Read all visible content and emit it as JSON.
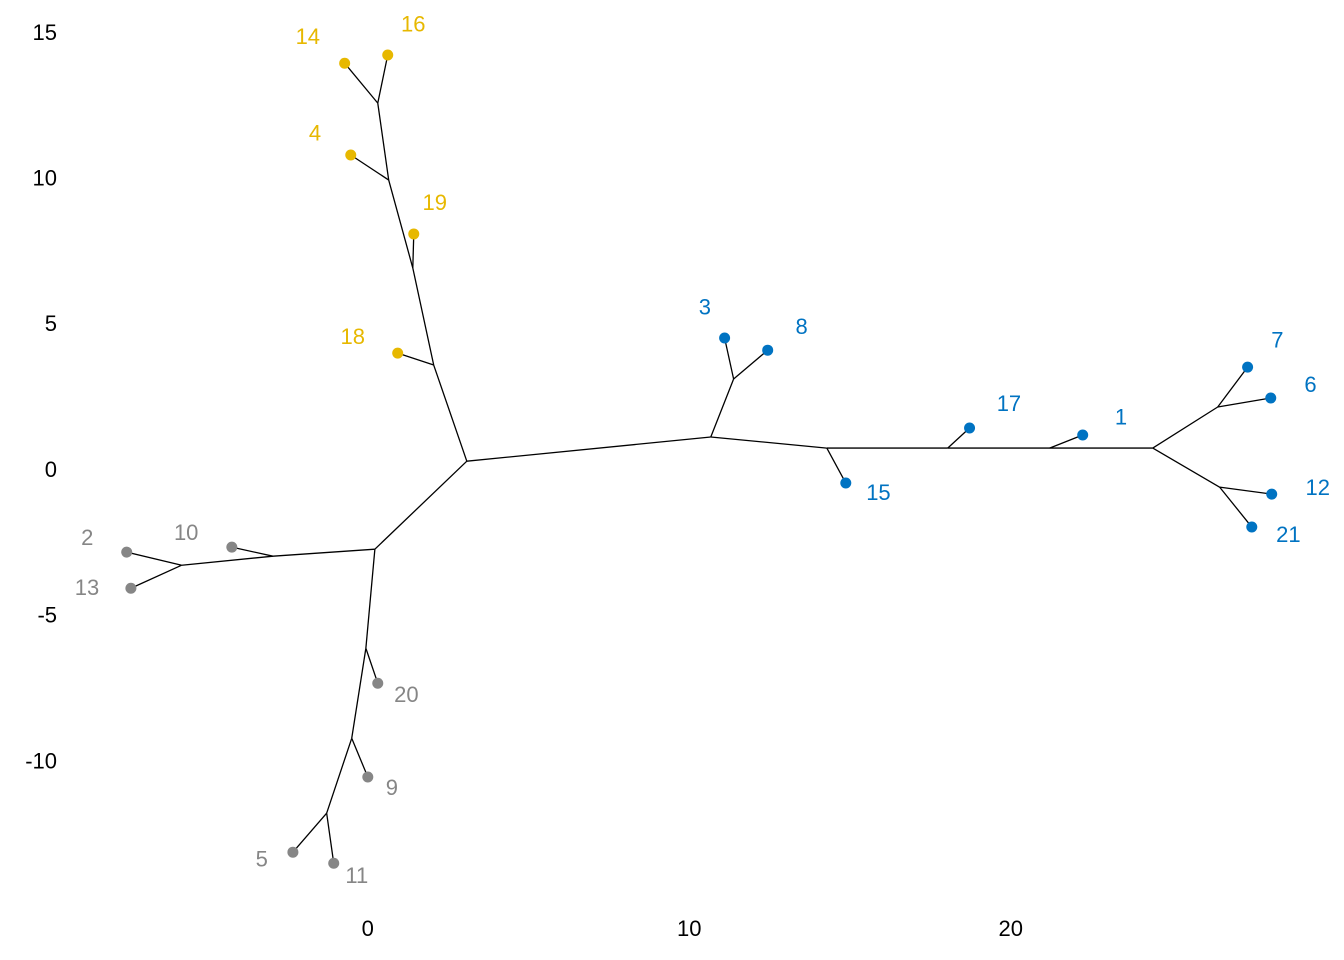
{
  "chart_data": {
    "type": "tree",
    "xlim": [
      -8.3,
      29
    ],
    "ylim": [
      -14,
      15.5
    ],
    "xticks": [
      0,
      10,
      20
    ],
    "yticks": [
      -10,
      -5,
      0,
      5,
      10,
      15
    ],
    "tree": {
      "x": 3.08,
      "y": 0.34,
      "children": [
        {
          "x": 0.22,
          "y": -2.68,
          "children": [
            {
              "x": -2.95,
              "y": -2.92,
              "children": [
                {
                  "x": -4.23,
                  "y": -2.61,
                  "label": "10",
                  "color": "#868686"
                },
                {
                  "x": -5.79,
                  "y": -3.23,
                  "children": [
                    {
                      "x": -7.5,
                      "y": -2.78,
                      "label": "2",
                      "color": "#868686"
                    },
                    {
                      "x": -7.37,
                      "y": -4.02,
                      "label": "13",
                      "color": "#868686"
                    }
                  ]
                }
              ]
            },
            {
              "x": -0.06,
              "y": -6.08,
              "children": [
                {
                  "x": 0.31,
                  "y": -7.28,
                  "label": "20",
                  "color": "#868686"
                },
                {
                  "x": -0.5,
                  "y": -9.17,
                  "children": [
                    {
                      "x": 0,
                      "y": -10.5,
                      "label": "9",
                      "color": "#868686"
                    },
                    {
                      "x": -1.28,
                      "y": -11.74,
                      "children": [
                        {
                          "x": -2.33,
                          "y": -13.08,
                          "label": "5",
                          "color": "#868686"
                        },
                        {
                          "x": -1.06,
                          "y": -13.46,
                          "label": "11",
                          "color": "#868686"
                        }
                      ]
                    }
                  ]
                }
              ]
            }
          ]
        },
        {
          "x": 10.67,
          "y": 1.17,
          "children": [
            {
              "x": 11.38,
              "y": 3.16,
              "children": [
                {
                  "x": 11.1,
                  "y": 4.57,
                  "label": "3",
                  "color": "#0073C2"
                },
                {
                  "x": 12.44,
                  "y": 4.15,
                  "label": "8",
                  "color": "#0073C2"
                }
              ]
            },
            {
              "x": 14.28,
              "y": 0.79,
              "children": [
                {
                  "x": 14.87,
                  "y": -0.41,
                  "label": "15",
                  "color": "#0073C2"
                },
                {
                  "x": 18.04,
                  "y": 0.79,
                  "children": [
                    {
                      "x": 18.72,
                      "y": 1.48,
                      "label": "17",
                      "color": "#0073C2"
                    },
                    {
                      "x": 21.21,
                      "y": 0.79,
                      "children": [
                        {
                          "x": 22.24,
                          "y": 1.24,
                          "label": "1",
                          "color": "#0073C2"
                        },
                        {
                          "x": 24.42,
                          "y": 0.79,
                          "children": [
                            {
                              "x": 26.44,
                              "y": 2.2,
                              "children": [
                                {
                                  "x": 27.37,
                                  "y": 3.57,
                                  "label": "7",
                                  "color": "#0073C2"
                                },
                                {
                                  "x": 28.09,
                                  "y": 2.51,
                                  "label": "6",
                                  "color": "#0073C2"
                                }
                              ]
                            },
                            {
                              "x": 26.5,
                              "y": -0.55,
                              "children": [
                                {
                                  "x": 28.12,
                                  "y": -0.79,
                                  "label": "12",
                                  "color": "#0073C2"
                                },
                                {
                                  "x": 27.5,
                                  "y": -1.92,
                                  "label": "21",
                                  "color": "#0073C2"
                                }
                              ]
                            }
                          ]
                        }
                      ]
                    }
                  ]
                }
              ]
            }
          ]
        },
        {
          "x": 2.05,
          "y": 3.64,
          "children": [
            {
              "x": 0.93,
              "y": 4.05,
              "label": "18",
              "color": "#E7B800"
            },
            {
              "x": 1.4,
              "y": 6.97,
              "children": [
                {
                  "x": 1.43,
                  "y": 8.14,
                  "label": "19",
                  "color": "#E7B800"
                },
                {
                  "x": 0.65,
                  "y": 9.99,
                  "children": [
                    {
                      "x": -0.53,
                      "y": 10.85,
                      "label": "4",
                      "color": "#E7B800"
                    },
                    {
                      "x": 0.31,
                      "y": 12.63,
                      "children": [
                        {
                          "x": -0.72,
                          "y": 14.0,
                          "label": "14",
                          "color": "#E7B800"
                        },
                        {
                          "x": 0.62,
                          "y": 14.28,
                          "label": "16",
                          "color": "#E7B800"
                        }
                      ]
                    }
                  ]
                }
              ]
            }
          ]
        }
      ]
    }
  }
}
